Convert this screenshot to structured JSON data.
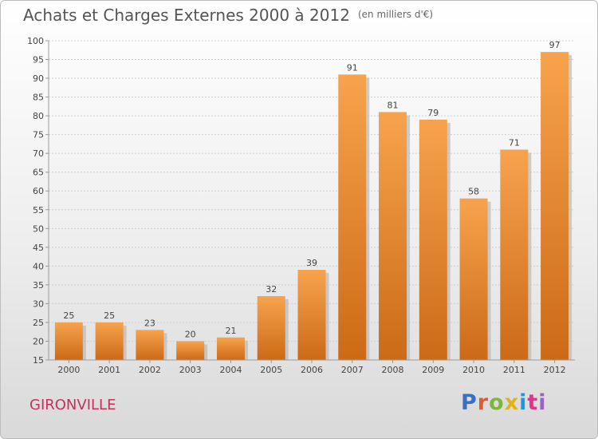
{
  "header": {
    "title": "Achats et Charges Externes 2000 à 2012",
    "subtitle": "(en milliers d'€)"
  },
  "footer": {
    "place": "GIRONVILLE",
    "logo_letters": [
      "P",
      "r",
      "o",
      "x",
      "i",
      "t",
      "i"
    ],
    "logo_colors": [
      "#3a6fc4",
      "#e35b2a",
      "#7bb83a",
      "#e0b21c",
      "#1a9ad6",
      "#d6398a",
      "#9a62c4"
    ]
  },
  "colors": {
    "bar_top": "#f7a34d",
    "bar_bottom": "#cc6a16",
    "bar_shadow": "#b9b9b9",
    "grid": "#cfcfcf",
    "axis": "#9a9a9a"
  },
  "chart_data": {
    "type": "bar",
    "title": "Achats et Charges Externes 2000 à 2012",
    "subtitle": "(en milliers d'€)",
    "categories": [
      "2000",
      "2001",
      "2002",
      "2003",
      "2004",
      "2005",
      "2006",
      "2007",
      "2008",
      "2009",
      "2010",
      "2011",
      "2012"
    ],
    "values": [
      25,
      25,
      23,
      20,
      21,
      32,
      39,
      91,
      81,
      79,
      58,
      71,
      97
    ],
    "ylim": [
      15,
      100
    ],
    "yticks": [
      15,
      20,
      25,
      30,
      35,
      40,
      45,
      50,
      55,
      60,
      65,
      70,
      75,
      80,
      85,
      90,
      95,
      100
    ],
    "grid": true,
    "data_labels": true
  }
}
